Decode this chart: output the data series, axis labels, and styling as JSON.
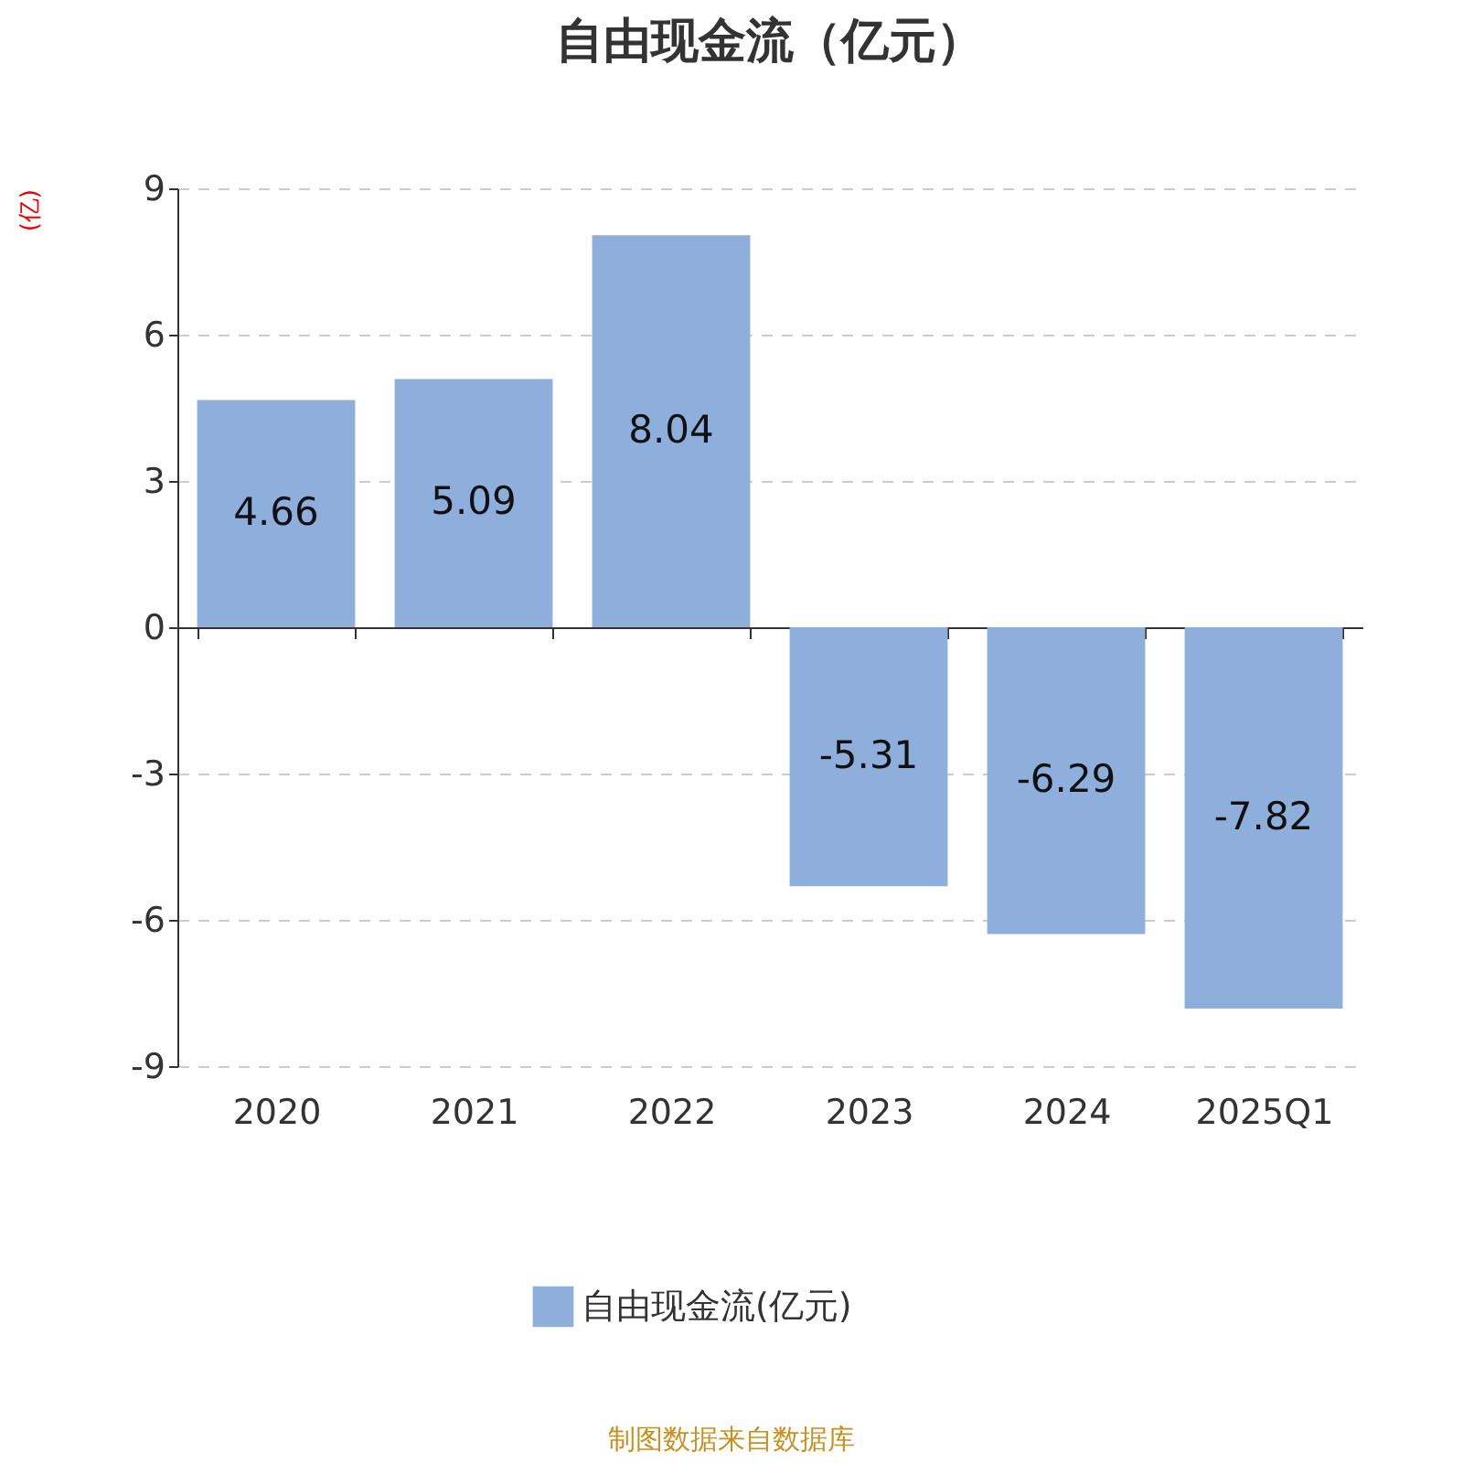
{
  "chart_data": {
    "type": "bar",
    "title": "自由现金流（亿元）",
    "ylabel": "(亿)",
    "categories": [
      "2020",
      "2021",
      "2022",
      "2023",
      "2024",
      "2025Q1"
    ],
    "series": [
      {
        "name": "自由现金流(亿元)",
        "color": "#8eaedb",
        "values": [
          4.66,
          5.09,
          8.04,
          -5.31,
          -6.29,
          -7.82
        ]
      }
    ],
    "ylim": [
      -9,
      9
    ],
    "yticks": [
      -9,
      -6,
      -3,
      0,
      3,
      6,
      9
    ],
    "grid": "y",
    "legend": "bottom",
    "data_labels": true,
    "annotations": [
      "制图数据来自数据库"
    ]
  }
}
